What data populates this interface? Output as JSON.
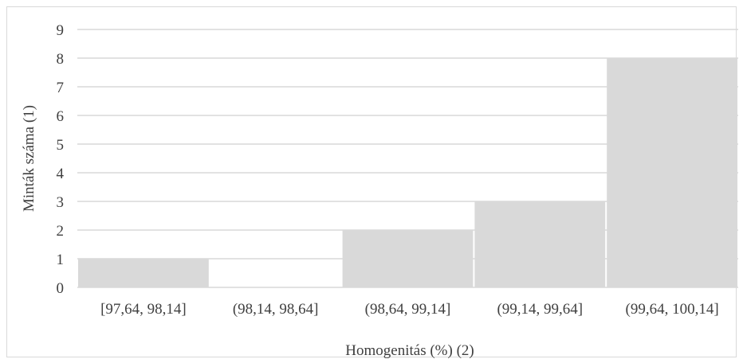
{
  "chart_data": {
    "type": "bar",
    "title": "",
    "xlabel": "Homogenitás (%) (2)",
    "ylabel": "Minták száma (1)",
    "categories": [
      "[97,64, 98,14]",
      "(98,14, 98,64]",
      "(98,64, 99,14]",
      "(99,14, 99,64]",
      "(99,64, 100,14]"
    ],
    "values": [
      1,
      0,
      2,
      3,
      8
    ],
    "ylim": [
      0,
      9
    ],
    "yticks": [
      "0",
      "1",
      "2",
      "3",
      "4",
      "5",
      "6",
      "7",
      "8",
      "9"
    ],
    "grid": true,
    "legend": "none",
    "colors": {
      "bar": "#d9d9d9",
      "grid": "#d9d9d9",
      "text": "#404040",
      "border": "#d9d9d9"
    }
  }
}
